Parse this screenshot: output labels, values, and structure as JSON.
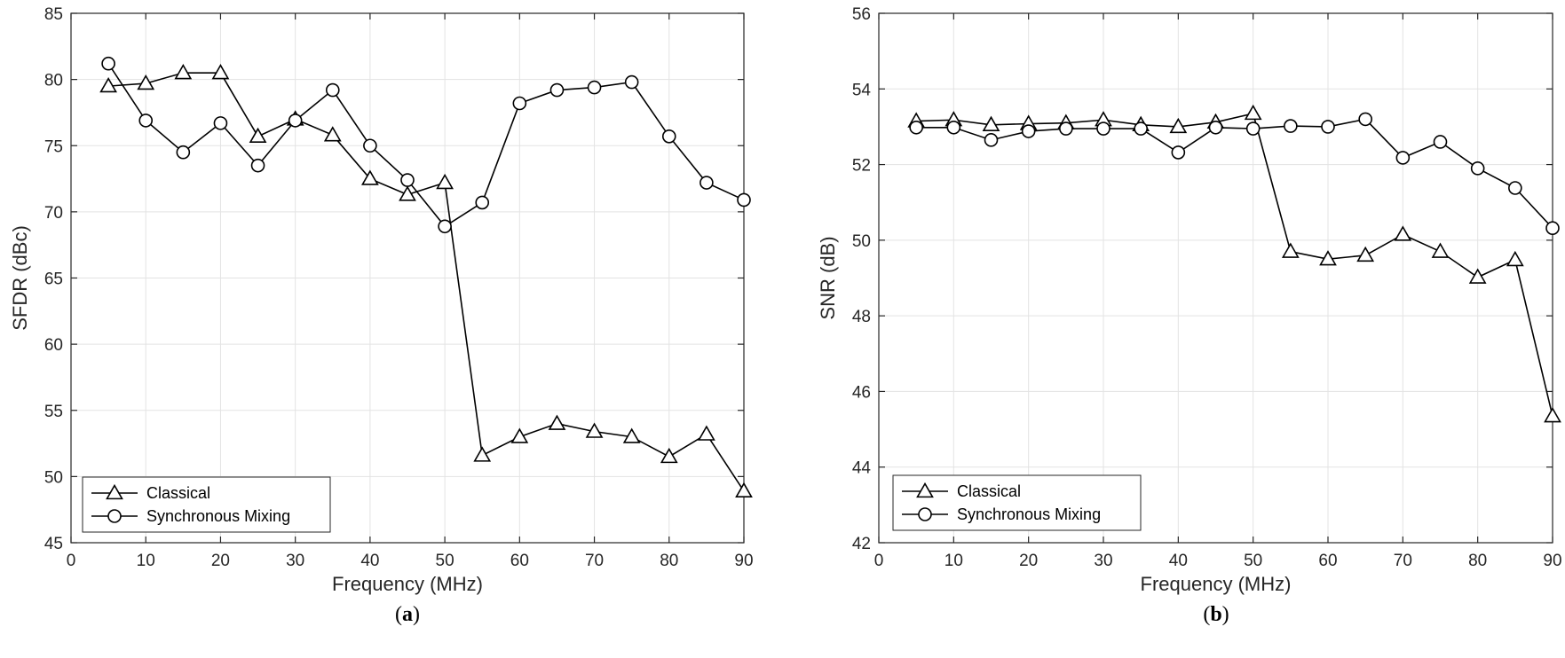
{
  "chart_data": [
    {
      "type": "line",
      "panel_label": "a",
      "xlabel": "Frequency (MHz)",
      "ylabel": "SFDR (dBc)",
      "xlim": [
        0,
        90
      ],
      "ylim": [
        45,
        85
      ],
      "xticks": [
        0,
        10,
        20,
        30,
        40,
        50,
        60,
        70,
        80,
        90
      ],
      "yticks": [
        45,
        50,
        55,
        60,
        65,
        70,
        75,
        80,
        85
      ],
      "grid": true,
      "legend_position": "bottom-left",
      "x": [
        5,
        10,
        15,
        20,
        25,
        30,
        35,
        40,
        45,
        50,
        55,
        60,
        65,
        70,
        75,
        80,
        85,
        90
      ],
      "series": [
        {
          "name": "Classical",
          "marker": "triangle",
          "values": [
            79.5,
            79.7,
            80.5,
            80.5,
            75.7,
            77.0,
            75.8,
            72.5,
            71.3,
            72.2,
            51.6,
            53.0,
            54.0,
            53.4,
            53.0,
            51.5,
            53.2,
            48.9
          ]
        },
        {
          "name": "Synchronous Mixing",
          "marker": "circle",
          "values": [
            81.2,
            76.9,
            74.5,
            76.7,
            73.5,
            76.9,
            79.2,
            75.0,
            72.4,
            68.9,
            70.7,
            78.2,
            79.2,
            79.4,
            79.8,
            75.7,
            72.2,
            70.9
          ]
        }
      ]
    },
    {
      "type": "line",
      "panel_label": "b",
      "xlabel": "Frequency (MHz)",
      "ylabel": "SNR (dB)",
      "xlim": [
        0,
        90
      ],
      "ylim": [
        42,
        56
      ],
      "xticks": [
        0,
        10,
        20,
        30,
        40,
        50,
        60,
        70,
        80,
        90
      ],
      "yticks": [
        42,
        44,
        46,
        48,
        50,
        52,
        54,
        56
      ],
      "grid": true,
      "legend_position": "bottom-left",
      "x": [
        5,
        10,
        15,
        20,
        25,
        30,
        35,
        40,
        45,
        50,
        55,
        60,
        65,
        70,
        75,
        80,
        85,
        90
      ],
      "series": [
        {
          "name": "Classical",
          "marker": "triangle",
          "values": [
            53.15,
            53.18,
            53.05,
            53.08,
            53.1,
            53.18,
            53.05,
            53.0,
            53.12,
            53.35,
            49.7,
            49.5,
            49.6,
            50.15,
            49.7,
            49.02,
            49.48,
            45.35
          ]
        },
        {
          "name": "Synchronous Mixing",
          "marker": "circle",
          "values": [
            52.98,
            52.98,
            52.65,
            52.88,
            52.95,
            52.95,
            52.95,
            52.32,
            52.98,
            52.95,
            53.02,
            53.0,
            53.2,
            52.18,
            52.6,
            51.9,
            51.38,
            50.32
          ]
        }
      ]
    }
  ]
}
